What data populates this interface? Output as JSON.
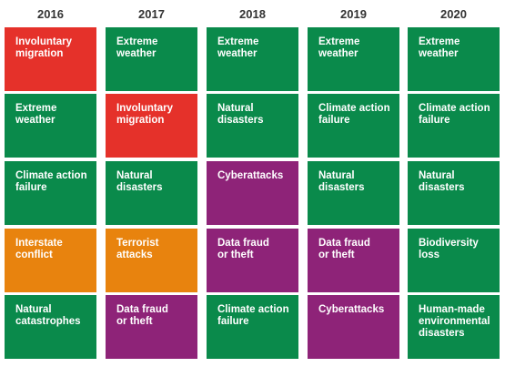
{
  "chart_data": {
    "type": "table",
    "title": "",
    "years": [
      "2016",
      "2017",
      "2018",
      "2019",
      "2020"
    ],
    "colors": {
      "environmental": "#0a8a4b",
      "societal": "#e5312a",
      "geopolitical": "#e8830e",
      "technological": "#8e2378"
    },
    "columns": [
      {
        "year": "2016",
        "risks": [
          {
            "label": "Involuntary migration",
            "category": "societal"
          },
          {
            "label": "Extreme weather",
            "category": "environmental"
          },
          {
            "label": "Climate action failure",
            "category": "environmental"
          },
          {
            "label": "Interstate conflict",
            "category": "geopolitical"
          },
          {
            "label": "Natural catastrophes",
            "category": "environmental"
          }
        ]
      },
      {
        "year": "2017",
        "risks": [
          {
            "label": "Extreme weather",
            "category": "environmental"
          },
          {
            "label": "Involuntary migration",
            "category": "societal"
          },
          {
            "label": "Natural disasters",
            "category": "environmental"
          },
          {
            "label": "Terrorist attacks",
            "category": "geopolitical"
          },
          {
            "label": "Data fraud or theft",
            "category": "technological"
          }
        ]
      },
      {
        "year": "2018",
        "risks": [
          {
            "label": "Extreme weather",
            "category": "environmental"
          },
          {
            "label": "Natural disasters",
            "category": "environmental"
          },
          {
            "label": "Cyberattacks",
            "category": "technological"
          },
          {
            "label": "Data fraud or theft",
            "category": "technological"
          },
          {
            "label": "Climate action failure",
            "category": "environmental"
          }
        ]
      },
      {
        "year": "2019",
        "risks": [
          {
            "label": "Extreme weather",
            "category": "environmental"
          },
          {
            "label": "Climate action failure",
            "category": "environmental"
          },
          {
            "label": "Natural disasters",
            "category": "environmental"
          },
          {
            "label": "Data fraud or theft",
            "category": "technological"
          },
          {
            "label": "Cyberattacks",
            "category": "technological"
          }
        ]
      },
      {
        "year": "2020",
        "risks": [
          {
            "label": "Extreme weather",
            "category": "environmental"
          },
          {
            "label": "Climate action failure",
            "category": "environmental"
          },
          {
            "label": "Natural disasters",
            "category": "environmental"
          },
          {
            "label": "Biodiversity loss",
            "category": "environmental"
          },
          {
            "label": "Human-made environmental disasters",
            "category": "environmental"
          }
        ]
      }
    ]
  }
}
